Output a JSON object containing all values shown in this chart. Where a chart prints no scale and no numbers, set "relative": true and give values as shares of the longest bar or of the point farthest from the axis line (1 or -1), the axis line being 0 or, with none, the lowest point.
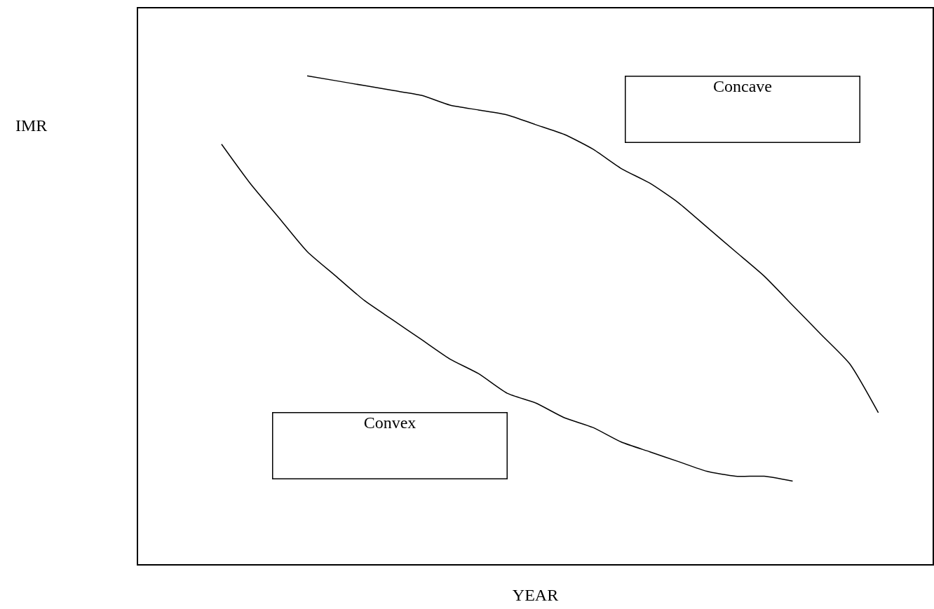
{
  "chart_data": {
    "type": "line",
    "relative": true,
    "xlabel": "YEAR",
    "categories": [
      null,
      null,
      null,
      null,
      null,
      null,
      null,
      null,
      null,
      null,
      null,
      null,
      null,
      null,
      null,
      null,
      null,
      null,
      null,
      null,
      null,
      null,
      null,
      null
    ],
    "series": [
      {
        "color": "#000000",
        "values": [
          null,
          null,
          null,
          1,
          0.99,
          0.98,
          0.97,
          0.96,
          0.94,
          0.93,
          0.92,
          0.9,
          0.88,
          0.85,
          0.81,
          0.78,
          0.74,
          0.69,
          0.64,
          0.59,
          0.53,
          0.47,
          0.41,
          0.31
        ]
      },
      {
        "color": "#000000",
        "values": [
          0.86,
          0.78,
          0.71,
          0.64,
          0.59,
          0.54,
          0.5,
          0.46,
          0.42,
          0.39,
          0.35,
          0.33,
          0.3,
          0.28,
          0.25,
          0.23,
          0.21,
          0.19,
          0.18,
          0.18,
          0.17,
          null,
          null,
          null
        ]
      }
    ],
    "annotations": [
      "Concave",
      "Convex",
      "IMR"
    ],
    "grid": false,
    "marker": "none",
    "line_style": "solid"
  }
}
